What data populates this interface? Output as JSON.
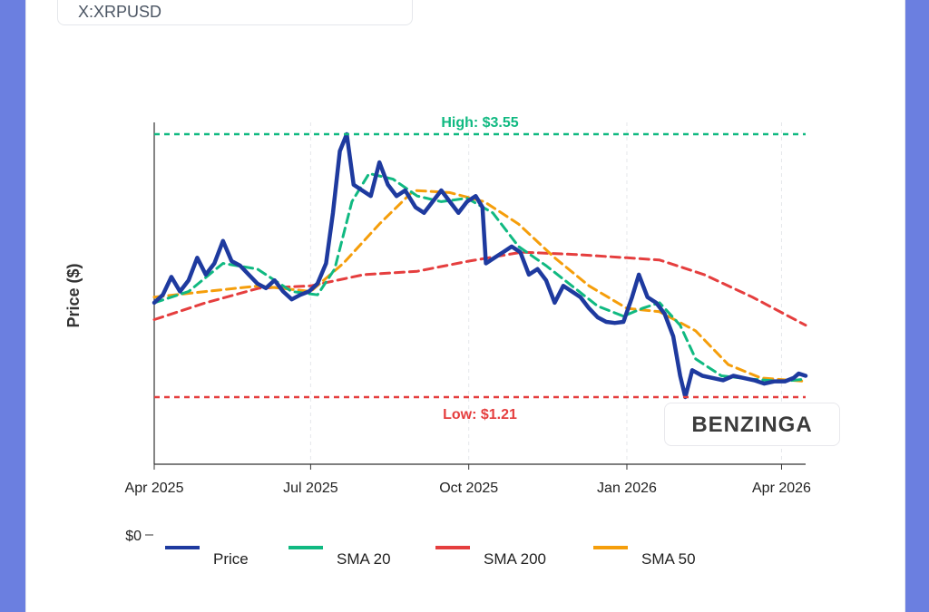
{
  "ticker": "X:XRPUSD",
  "watermark": "BENZINGA",
  "chart_data": {
    "type": "line",
    "ylabel": "Price ($)",
    "x_ticks": [
      "Apr 2025",
      "Jul 2025",
      "Oct 2025",
      "Jan 2026",
      "Apr 2026"
    ],
    "y_ticks": [
      "$0"
    ],
    "x_range": [
      "2025-04-01",
      "2026-04-15"
    ],
    "high_label": "High: $3.55",
    "low_label": "Low: $1.21",
    "high_value": 3.55,
    "low_value": 1.21,
    "legend_position": "bottom",
    "grid": true,
    "series": [
      {
        "name": "Price",
        "color": "#1e3a9f",
        "style": "solid",
        "points": [
          [
            "2025-04-01",
            2.05
          ],
          [
            "2025-04-06",
            2.12
          ],
          [
            "2025-04-11",
            2.28
          ],
          [
            "2025-04-16",
            2.15
          ],
          [
            "2025-04-21",
            2.25
          ],
          [
            "2025-04-26",
            2.45
          ],
          [
            "2025-05-01",
            2.3
          ],
          [
            "2025-05-06",
            2.4
          ],
          [
            "2025-05-11",
            2.6
          ],
          [
            "2025-05-16",
            2.42
          ],
          [
            "2025-05-21",
            2.38
          ],
          [
            "2025-05-26",
            2.3
          ],
          [
            "2025-05-31",
            2.22
          ],
          [
            "2025-06-05",
            2.18
          ],
          [
            "2025-06-10",
            2.25
          ],
          [
            "2025-06-15",
            2.15
          ],
          [
            "2025-06-20",
            2.08
          ],
          [
            "2025-06-25",
            2.12
          ],
          [
            "2025-06-30",
            2.15
          ],
          [
            "2025-07-05",
            2.22
          ],
          [
            "2025-07-10",
            2.4
          ],
          [
            "2025-07-14",
            2.85
          ],
          [
            "2025-07-18",
            3.4
          ],
          [
            "2025-07-22",
            3.55
          ],
          [
            "2025-07-26",
            3.1
          ],
          [
            "2025-07-31",
            3.05
          ],
          [
            "2025-08-05",
            3.0
          ],
          [
            "2025-08-10",
            3.3
          ],
          [
            "2025-08-15",
            3.1
          ],
          [
            "2025-08-20",
            3.0
          ],
          [
            "2025-08-25",
            3.05
          ],
          [
            "2025-08-31",
            2.9
          ],
          [
            "2025-09-05",
            2.85
          ],
          [
            "2025-09-10",
            2.95
          ],
          [
            "2025-09-15",
            3.05
          ],
          [
            "2025-09-20",
            2.95
          ],
          [
            "2025-09-25",
            2.85
          ],
          [
            "2025-09-30",
            2.95
          ],
          [
            "2025-10-05",
            3.0
          ],
          [
            "2025-10-09",
            2.9
          ],
          [
            "2025-10-11",
            2.4
          ],
          [
            "2025-10-16",
            2.45
          ],
          [
            "2025-10-21",
            2.5
          ],
          [
            "2025-10-26",
            2.55
          ],
          [
            "2025-10-31",
            2.5
          ],
          [
            "2025-11-05",
            2.3
          ],
          [
            "2025-11-10",
            2.35
          ],
          [
            "2025-11-15",
            2.25
          ],
          [
            "2025-11-20",
            2.05
          ],
          [
            "2025-11-25",
            2.2
          ],
          [
            "2025-11-30",
            2.15
          ],
          [
            "2025-12-05",
            2.1
          ],
          [
            "2025-12-10",
            2.0
          ],
          [
            "2025-12-15",
            1.92
          ],
          [
            "2025-12-20",
            1.88
          ],
          [
            "2025-12-25",
            1.87
          ],
          [
            "2025-12-30",
            1.88
          ],
          [
            "2026-01-04",
            2.1
          ],
          [
            "2026-01-08",
            2.3
          ],
          [
            "2026-01-13",
            2.1
          ],
          [
            "2026-01-18",
            2.05
          ],
          [
            "2026-01-23",
            1.95
          ],
          [
            "2026-01-28",
            1.75
          ],
          [
            "2026-02-01",
            1.4
          ],
          [
            "2026-02-04",
            1.21
          ],
          [
            "2026-02-08",
            1.45
          ],
          [
            "2026-02-14",
            1.4
          ],
          [
            "2026-02-20",
            1.38
          ],
          [
            "2026-02-26",
            1.36
          ],
          [
            "2026-03-04",
            1.4
          ],
          [
            "2026-03-10",
            1.38
          ],
          [
            "2026-03-16",
            1.36
          ],
          [
            "2026-03-22",
            1.33
          ],
          [
            "2026-03-28",
            1.35
          ],
          [
            "2026-04-03",
            1.35
          ],
          [
            "2026-04-08",
            1.38
          ],
          [
            "2026-04-11",
            1.42
          ],
          [
            "2026-04-15",
            1.4
          ]
        ]
      },
      {
        "name": "SMA 20",
        "color": "#10b981",
        "style": "dashed",
        "points": [
          [
            "2025-04-01",
            2.05
          ],
          [
            "2025-04-21",
            2.15
          ],
          [
            "2025-05-11",
            2.4
          ],
          [
            "2025-05-31",
            2.35
          ],
          [
            "2025-06-20",
            2.15
          ],
          [
            "2025-07-05",
            2.12
          ],
          [
            "2025-07-15",
            2.35
          ],
          [
            "2025-07-25",
            2.95
          ],
          [
            "2025-08-04",
            3.2
          ],
          [
            "2025-08-18",
            3.15
          ],
          [
            "2025-09-01",
            3.0
          ],
          [
            "2025-09-15",
            2.95
          ],
          [
            "2025-09-30",
            2.98
          ],
          [
            "2025-10-15",
            2.85
          ],
          [
            "2025-10-30",
            2.55
          ],
          [
            "2025-11-15",
            2.38
          ],
          [
            "2025-11-30",
            2.2
          ],
          [
            "2025-12-15",
            2.02
          ],
          [
            "2025-12-30",
            1.93
          ],
          [
            "2026-01-10",
            2.0
          ],
          [
            "2026-01-20",
            2.05
          ],
          [
            "2026-02-01",
            1.85
          ],
          [
            "2026-02-10",
            1.55
          ],
          [
            "2026-02-25",
            1.4
          ],
          [
            "2026-03-15",
            1.37
          ],
          [
            "2026-04-01",
            1.35
          ],
          [
            "2026-04-15",
            1.37
          ]
        ]
      },
      {
        "name": "SMA 200",
        "color": "#e53e3e",
        "style": "dashed",
        "points": [
          [
            "2025-04-01",
            1.9
          ],
          [
            "2025-05-01",
            2.05
          ],
          [
            "2025-06-01",
            2.18
          ],
          [
            "2025-07-01",
            2.2
          ],
          [
            "2025-08-01",
            2.3
          ],
          [
            "2025-09-01",
            2.33
          ],
          [
            "2025-10-01",
            2.42
          ],
          [
            "2025-11-01",
            2.5
          ],
          [
            "2025-12-01",
            2.48
          ],
          [
            "2026-01-01",
            2.45
          ],
          [
            "2026-01-20",
            2.43
          ],
          [
            "2026-02-15",
            2.3
          ],
          [
            "2026-03-15",
            2.1
          ],
          [
            "2026-04-15",
            1.85
          ]
        ]
      },
      {
        "name": "SMA 50",
        "color": "#f59e0b",
        "style": "dashed",
        "points": [
          [
            "2025-04-01",
            2.1
          ],
          [
            "2025-05-01",
            2.15
          ],
          [
            "2025-06-01",
            2.2
          ],
          [
            "2025-07-01",
            2.15
          ],
          [
            "2025-07-20",
            2.4
          ],
          [
            "2025-08-10",
            2.75
          ],
          [
            "2025-08-30",
            3.05
          ],
          [
            "2025-09-20",
            3.03
          ],
          [
            "2025-10-10",
            2.95
          ],
          [
            "2025-10-30",
            2.75
          ],
          [
            "2025-11-20",
            2.45
          ],
          [
            "2025-12-10",
            2.2
          ],
          [
            "2026-01-01",
            2.0
          ],
          [
            "2026-01-20",
            1.97
          ],
          [
            "2026-02-10",
            1.8
          ],
          [
            "2026-03-01",
            1.5
          ],
          [
            "2026-03-20",
            1.38
          ],
          [
            "2026-04-15",
            1.35
          ]
        ]
      }
    ]
  }
}
